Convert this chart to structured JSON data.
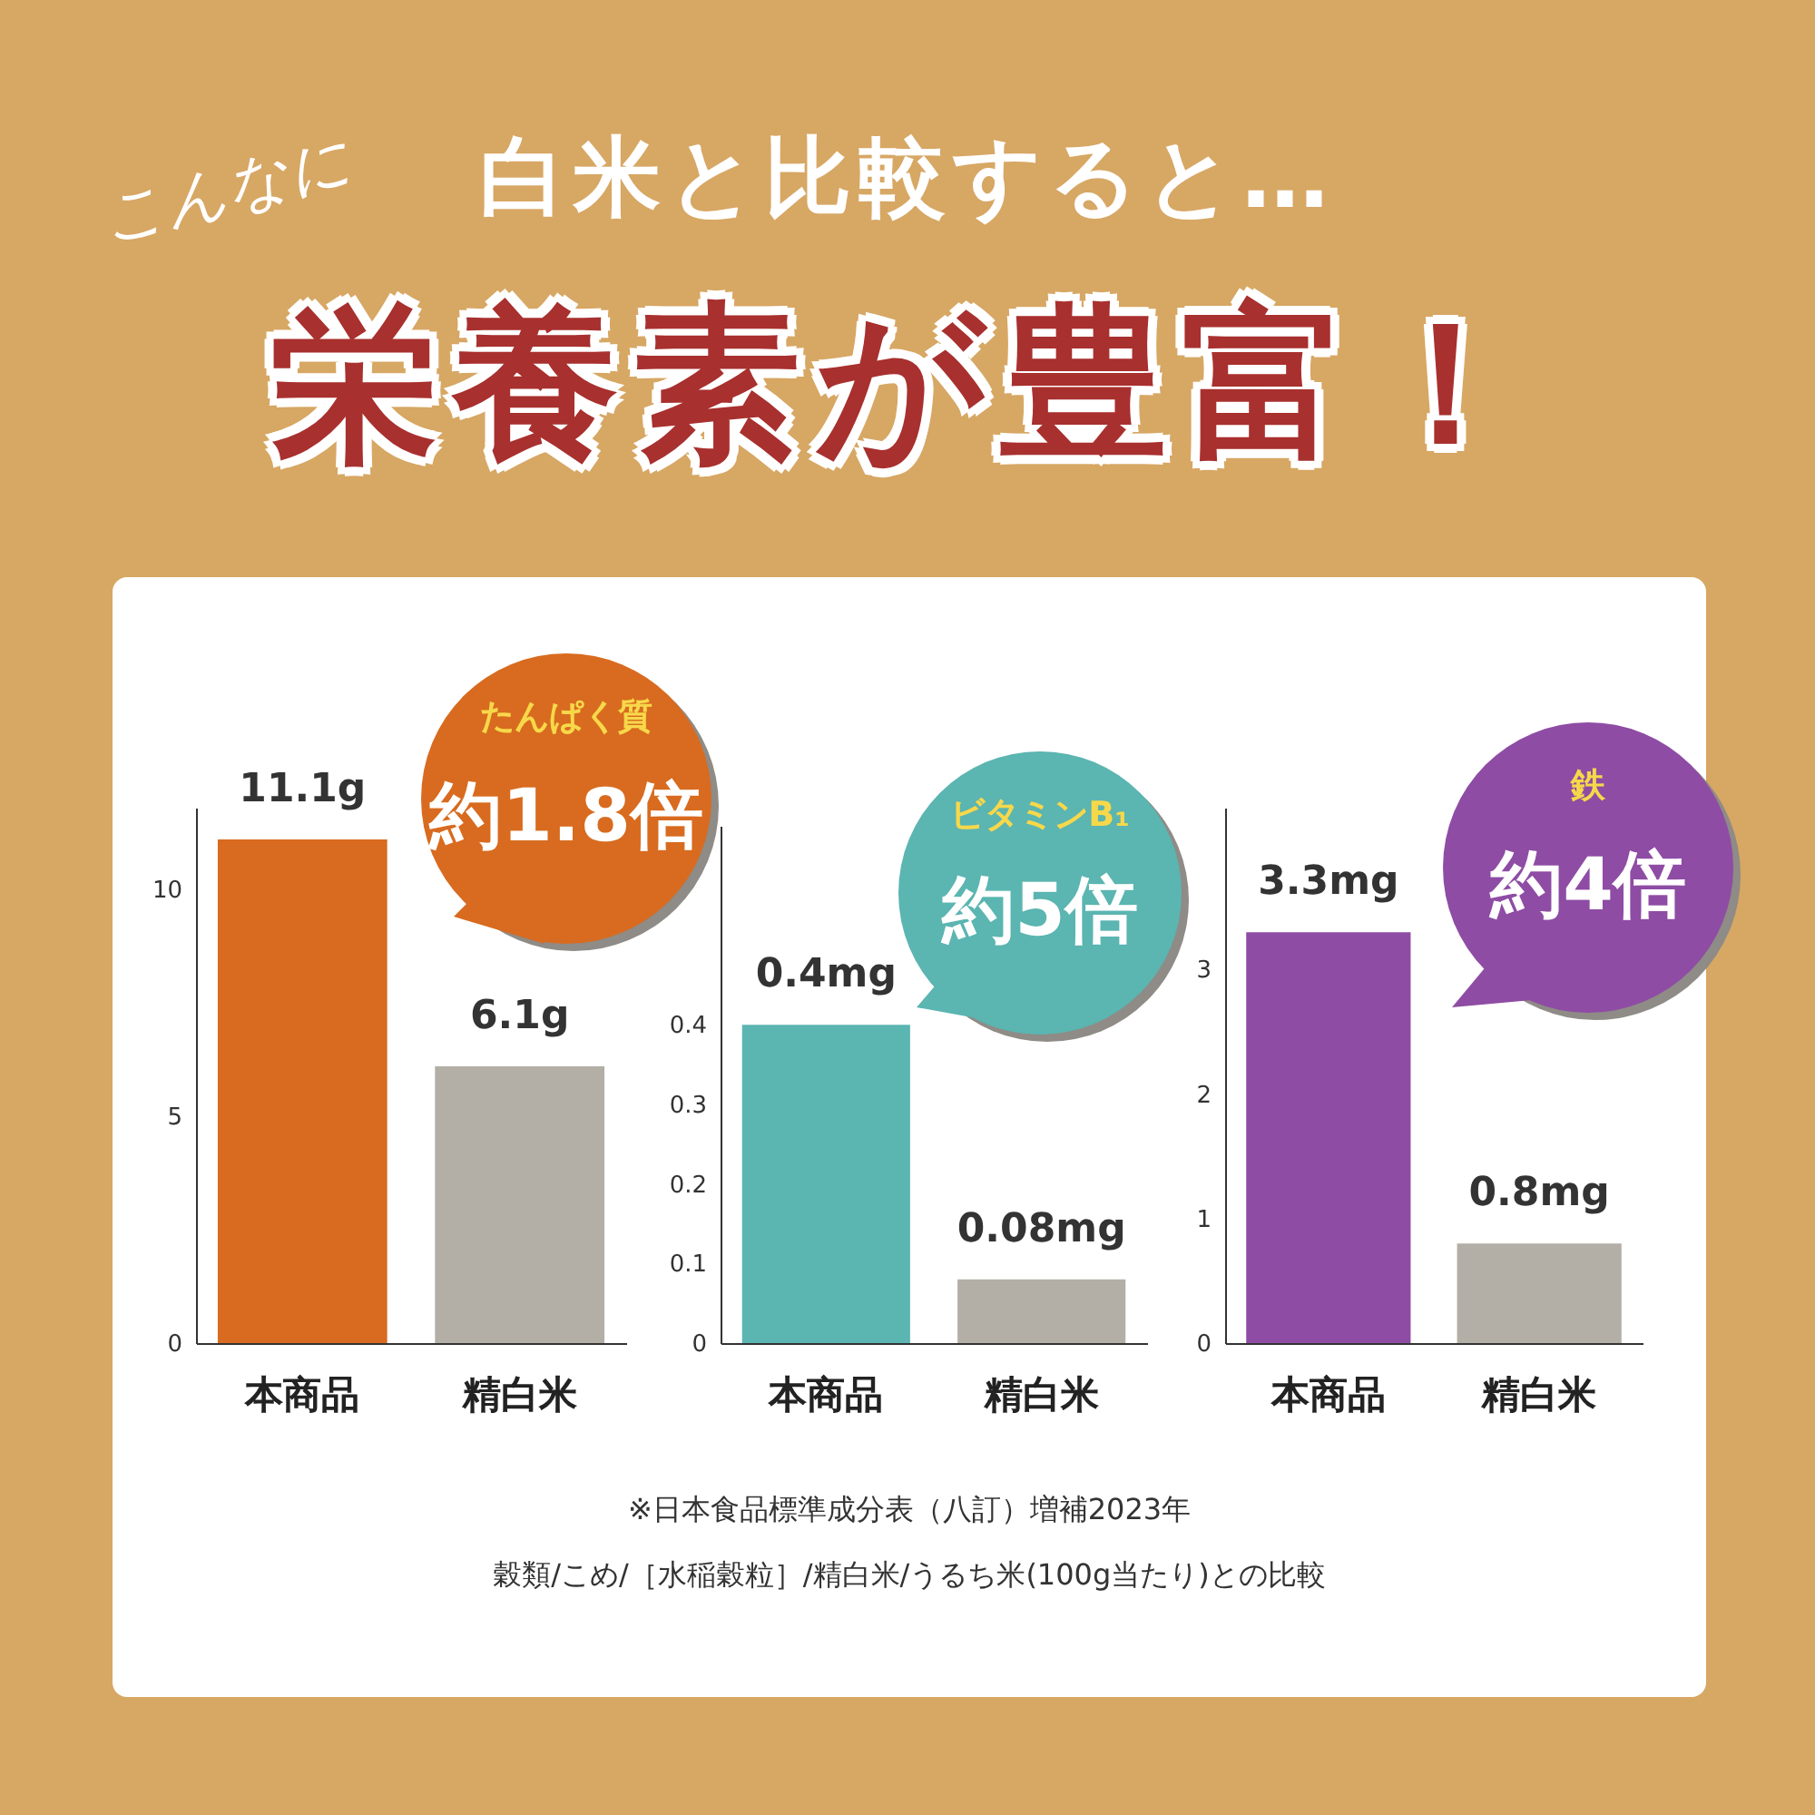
{
  "chart_data": [
    {
      "type": "bar",
      "title": "栄養素が豊富！",
      "subtitle": "白米と比較すると…",
      "categories": [
        "本商品",
        "精白米"
      ],
      "values": [
        11.1,
        6.1
      ],
      "colors": [
        "#d86b1f",
        "#b3aea6"
      ],
      "value_labels": [
        "11.1g",
        "6.1g"
      ],
      "ylim": [
        0,
        11.8
      ],
      "yticks": [
        0,
        5,
        10
      ],
      "annotations": [
        "たんぱく質",
        "約1.8倍",
        "こんなに"
      ]
    },
    {
      "type": "bar",
      "categories": [
        "本商品",
        "精白米"
      ],
      "values": [
        0.4,
        0.08
      ],
      "colors": [
        "#5bb5b1",
        "#b3aea6"
      ],
      "value_labels": [
        "0.4mg",
        "0.08mg"
      ],
      "ylim": [
        0,
        0.65
      ],
      "yticks": [
        0,
        0.1,
        0.2,
        0.3,
        0.4
      ],
      "annotations": [
        "ビタミンB₁",
        "約5倍",
        "※日本食品標準成分表（八訂）増補2023年",
        "穀類/こめ/［水稲穀粒］/精白米/うるち米(100g当たり)との比較"
      ]
    },
    {
      "type": "bar",
      "categories": [
        "本商品",
        "精白米"
      ],
      "values": [
        3.3,
        0.8
      ],
      "colors": [
        "#8e4ca4",
        "#b3aea6"
      ],
      "value_labels": [
        "3.3mg",
        "0.8mg"
      ],
      "ylim": [
        0,
        4.3
      ],
      "yticks": [
        0,
        1,
        2,
        3
      ],
      "annotations": [
        "鉄",
        "約4倍"
      ]
    }
  ]
}
